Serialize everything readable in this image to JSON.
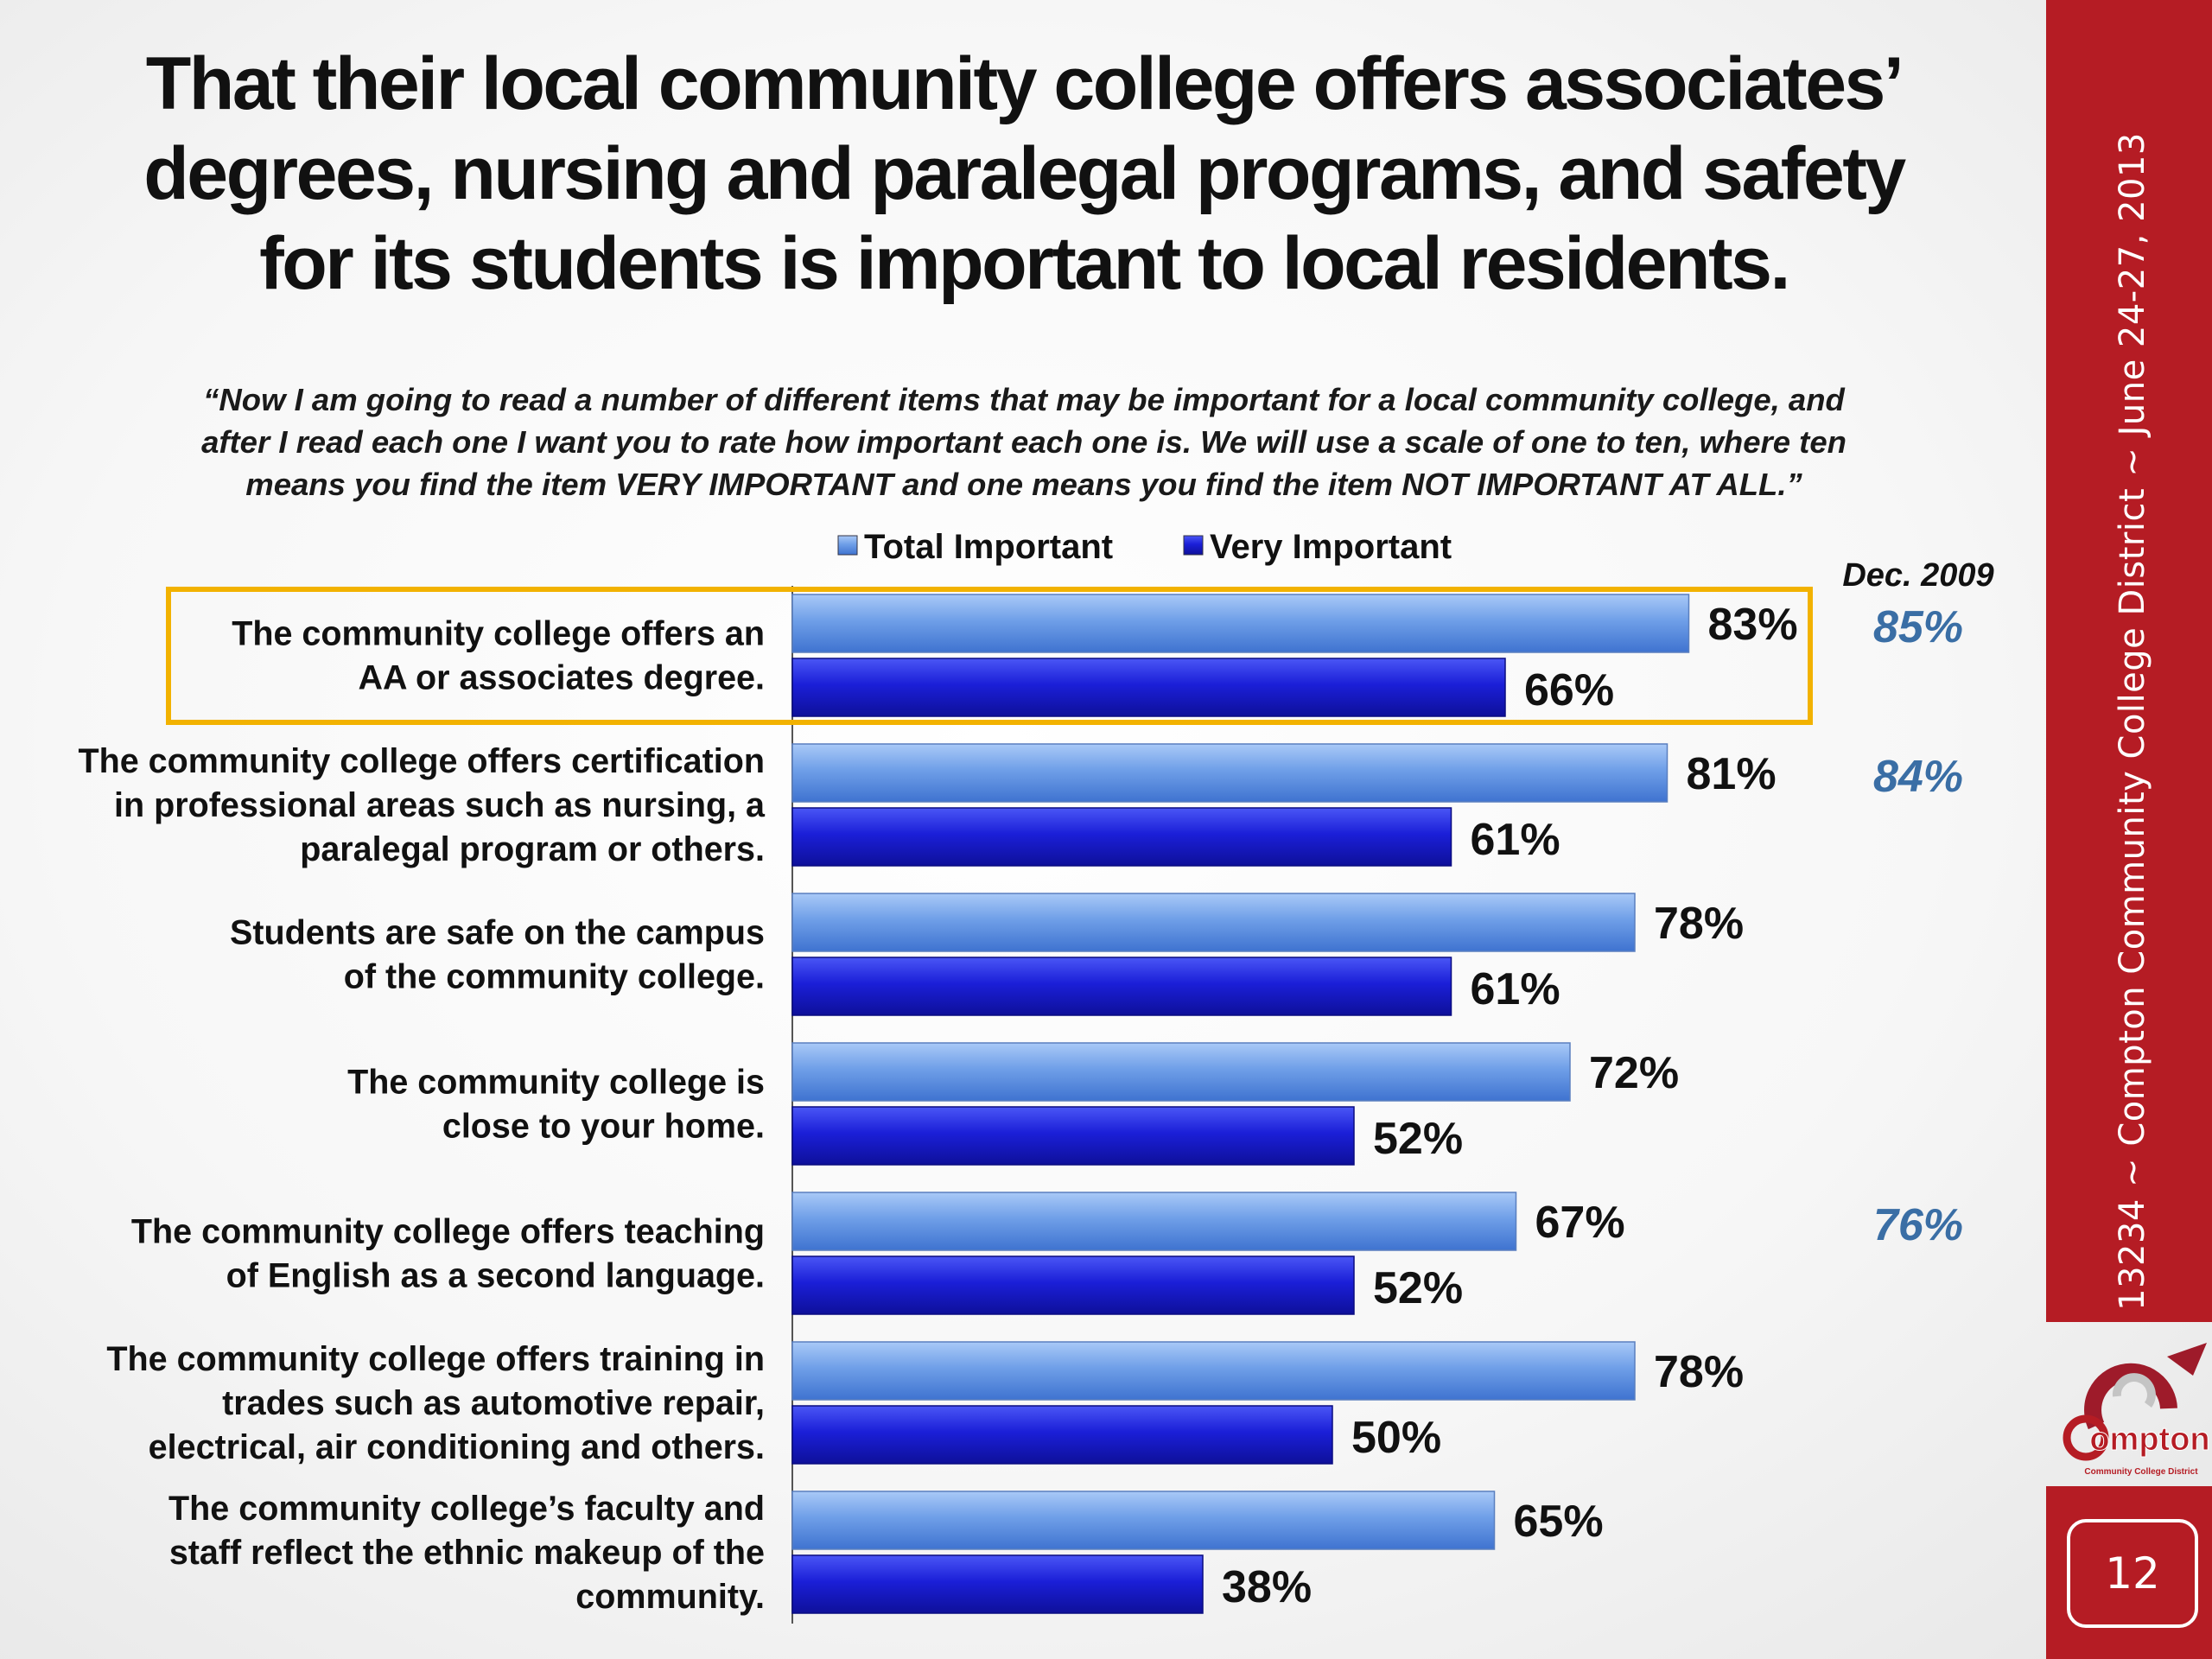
{
  "title": {
    "line1": "That their local community college offers associates’",
    "line2": "degrees, nursing and paralegal programs, and safety",
    "line3": "for its students is important to local residents."
  },
  "subtitle": {
    "line1": "“Now I am going to read a number of different items that may be important for a local community college, and",
    "line2": "after I read each one I want you to rate how important each one is. We will use a scale of one to ten, where ten",
    "line3": "means you find the item VERY IMPORTANT and one means you find the item NOT IMPORTANT AT ALL.”"
  },
  "sidebar": {
    "text": "13234 ~ Compton Community College District ~ June 24-27, 2013",
    "logo_text": "ompton",
    "logo_subtext": "Community College District",
    "page_number": "12"
  },
  "colors": {
    "band": "#b51c24",
    "total_bar": "#6f9fe8",
    "very_bar": "#1b1fd8",
    "highlight": "#f2b200",
    "history": "#3a6ea5"
  },
  "chart_data": {
    "type": "bar",
    "orientation": "horizontal",
    "xlim": [
      0,
      100
    ],
    "unit": "%",
    "highlighted_category": 0,
    "legend": {
      "position": "top",
      "items": [
        "Total Important",
        "Very Important"
      ]
    },
    "history_header": "Dec. 2009",
    "categories": [
      [
        "The community college offers an",
        "AA or associates degree."
      ],
      [
        "The community college offers certification",
        "in professional areas such as nursing, a",
        "paralegal program or others."
      ],
      [
        "Students are safe on the campus",
        "of the community college."
      ],
      [
        "The community college is",
        "close to your home."
      ],
      [
        "The community college offers teaching",
        "of English as a second language."
      ],
      [
        "The community college offers training in",
        "trades such as automotive repair,",
        "electrical, air conditioning and others."
      ],
      [
        "The community college’s faculty and",
        "staff reflect the ethnic makeup of the",
        "community."
      ]
    ],
    "series": [
      {
        "name": "Total Important",
        "values": [
          83,
          81,
          78,
          72,
          67,
          78,
          65
        ],
        "labels": [
          "83%",
          "81%",
          "78%",
          "72%",
          "67%",
          "78%",
          "65%"
        ]
      },
      {
        "name": "Very Important",
        "values": [
          66,
          61,
          61,
          52,
          52,
          50,
          38
        ],
        "labels": [
          "66%",
          "61%",
          "61%",
          "52%",
          "52%",
          "50%",
          "38%"
        ]
      }
    ],
    "history": [
      "85%",
      "84%",
      "",
      "",
      "76%",
      "",
      ""
    ]
  }
}
